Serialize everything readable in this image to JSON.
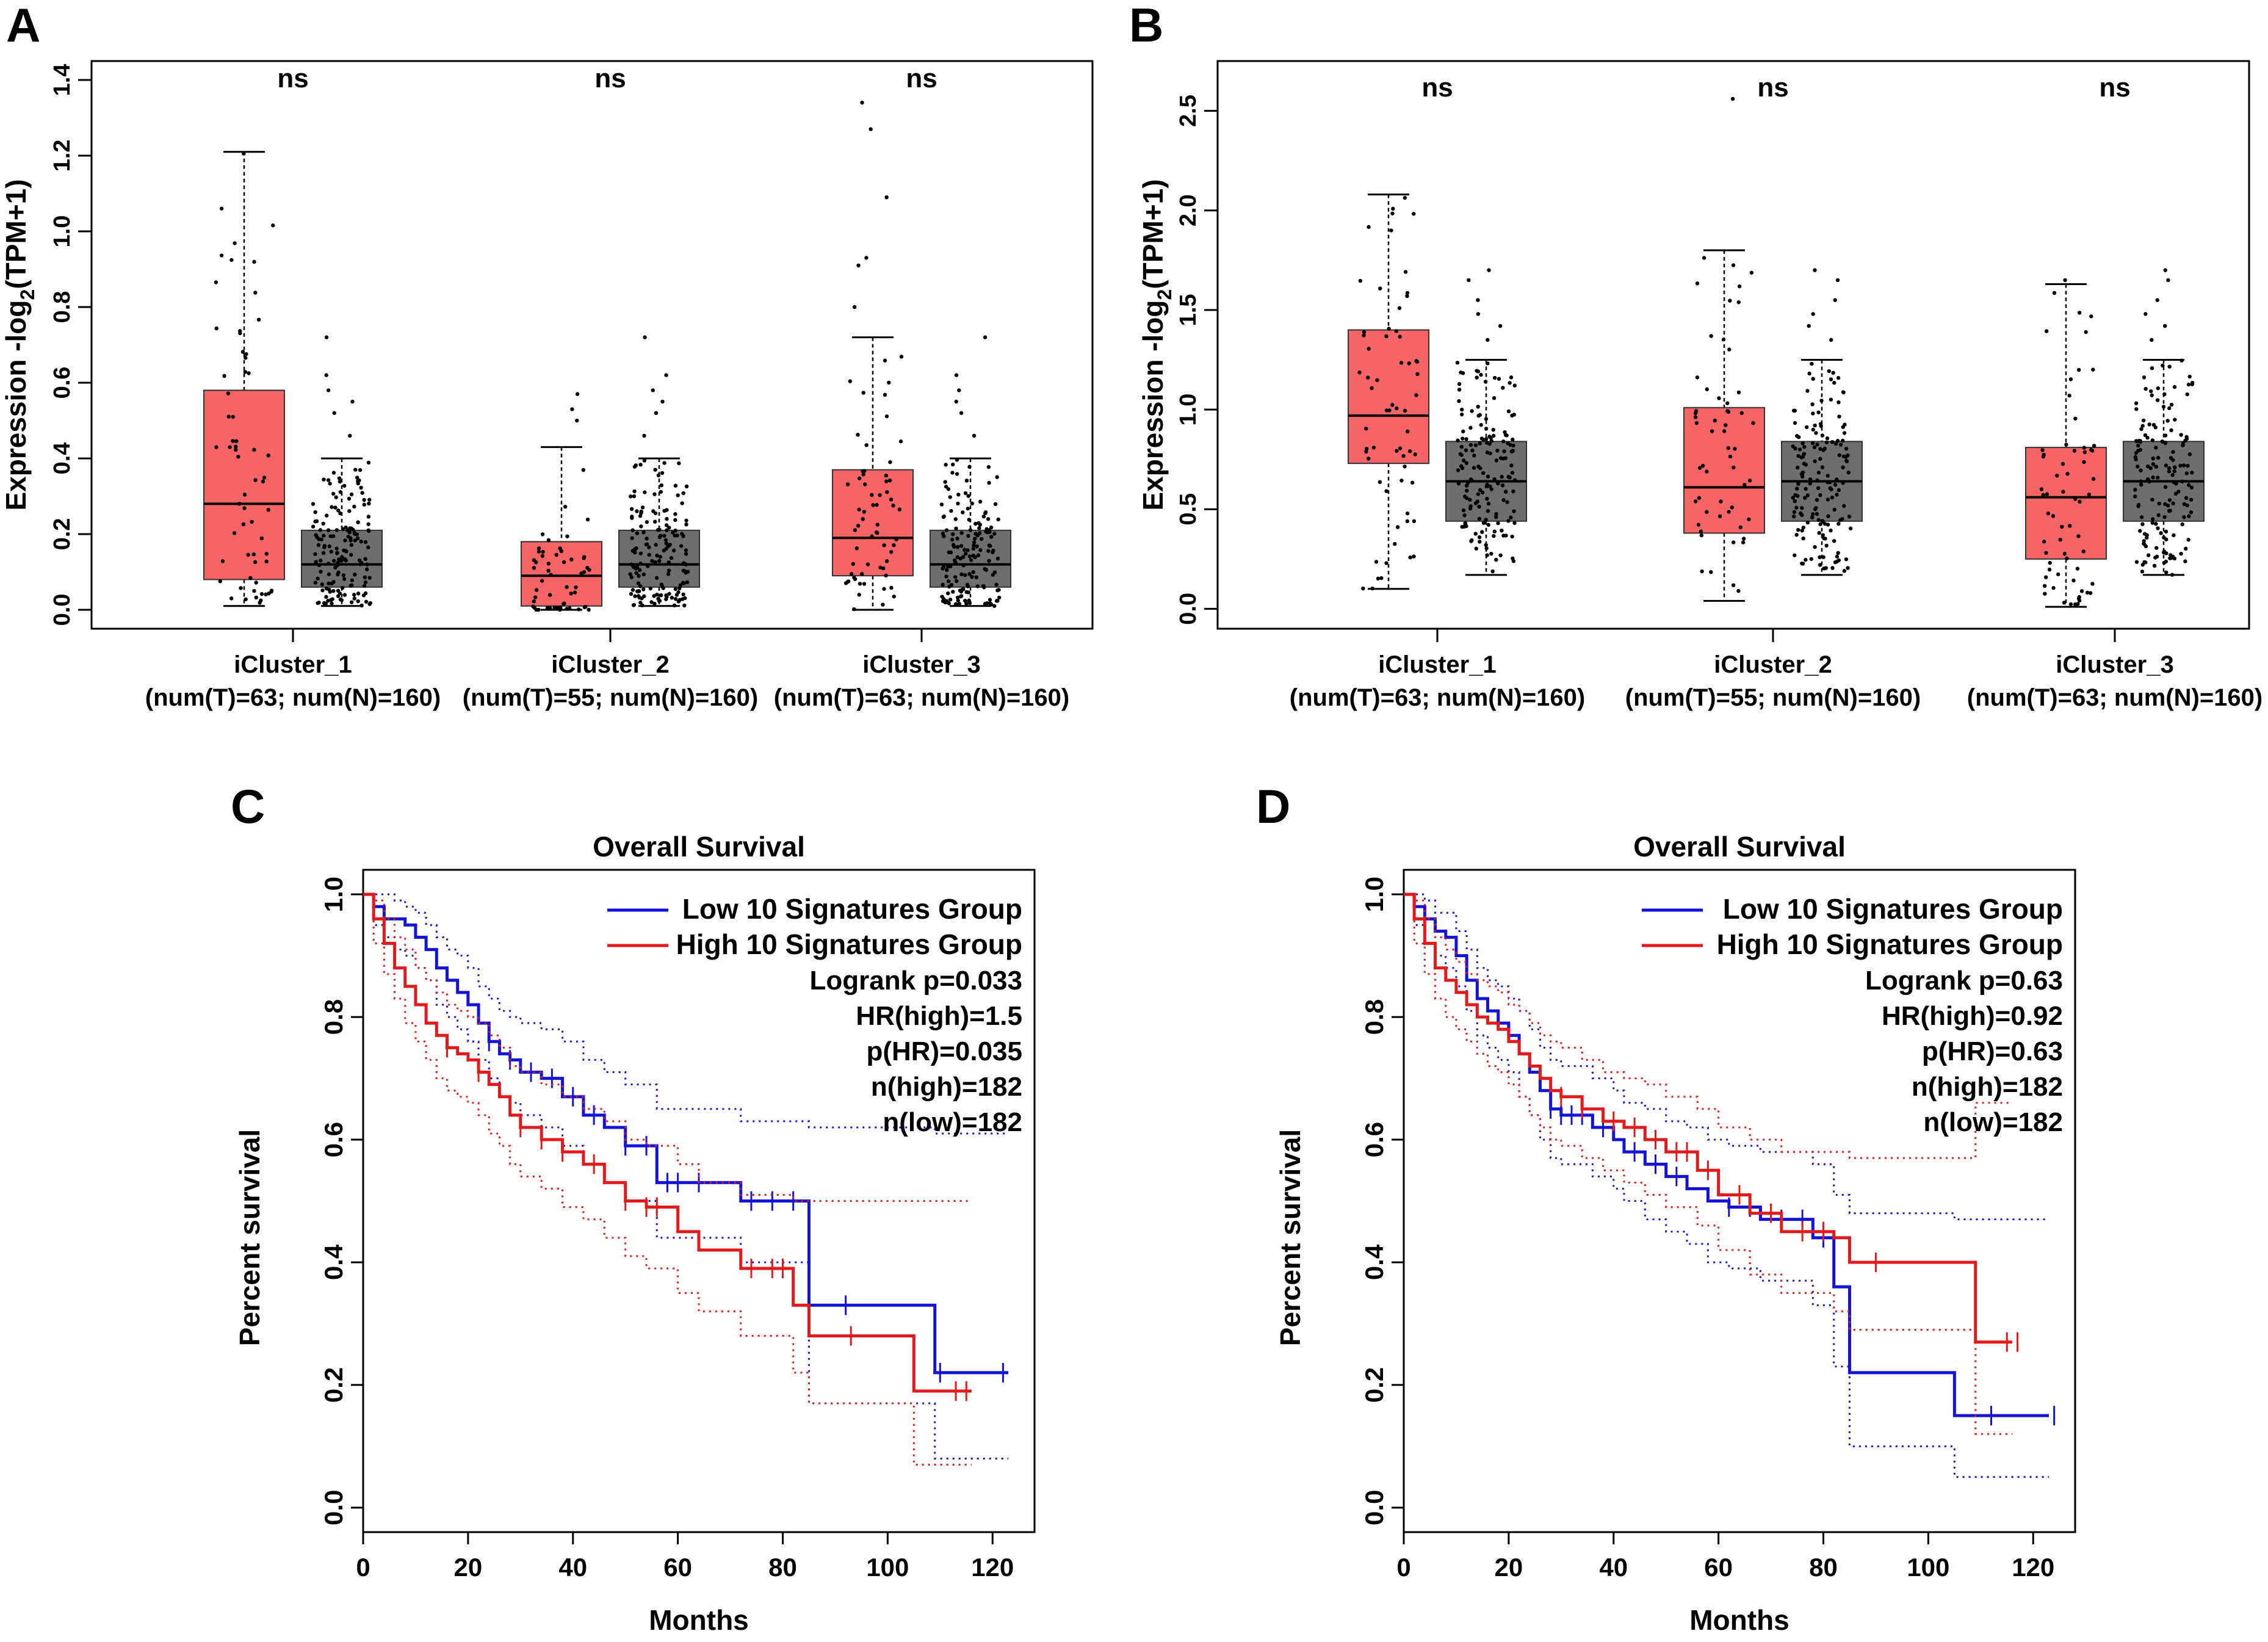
{
  "figure": {
    "panels": [
      "A",
      "B",
      "C",
      "D"
    ]
  },
  "colors": {
    "tumor_box": "#f56566",
    "normal_box": "#6e6e6e",
    "low_group": "#1414d8",
    "high_group": "#e31a1c",
    "axis": "#000000"
  },
  "chart_data": [
    {
      "panel": "A",
      "type": "box",
      "ylabel_main": "Expression -log",
      "ylabel_sub": "2",
      "ylabel_tail": "(TPM+1)",
      "ylim": [
        -0.05,
        1.45
      ],
      "yticks": [
        "0.0",
        "0.2",
        "0.4",
        "0.6",
        "0.8",
        "1.0",
        "1.2",
        "1.4"
      ],
      "ytick_values": [
        0,
        0.2,
        0.4,
        0.6,
        0.8,
        1.0,
        1.2,
        1.4
      ],
      "groups": [
        {
          "name": "iCluster_1",
          "counts": "(num(T)=63; num(N)=160)",
          "sig": "ns",
          "tumor": {
            "min": 0.01,
            "q1": 0.08,
            "median": 0.28,
            "q3": 0.58,
            "whisker": 1.21,
            "n": 63,
            "outliers": []
          },
          "normal": {
            "min": 0.01,
            "q1": 0.06,
            "median": 0.12,
            "q3": 0.21,
            "whisker": 0.4,
            "n": 160,
            "outliers": [
              0.72,
              0.62,
              0.58,
              0.55,
              0.52,
              0.46
            ]
          }
        },
        {
          "name": "iCluster_2",
          "counts": "(num(T)=55; num(N)=160)",
          "sig": "ns",
          "tumor": {
            "min": 0.0,
            "q1": 0.01,
            "median": 0.09,
            "q3": 0.18,
            "whisker": 0.43,
            "n": 55,
            "outliers": [
              0.57,
              0.53,
              0.5
            ]
          },
          "normal": {
            "min": 0.01,
            "q1": 0.06,
            "median": 0.12,
            "q3": 0.21,
            "whisker": 0.4,
            "n": 160,
            "outliers": [
              0.72,
              0.62,
              0.58,
              0.55,
              0.52,
              0.46
            ]
          }
        },
        {
          "name": "iCluster_3",
          "counts": "(num(T)=63; num(N)=160)",
          "sig": "ns",
          "tumor": {
            "min": 0.0,
            "q1": 0.09,
            "median": 0.19,
            "q3": 0.37,
            "whisker": 0.72,
            "n": 63,
            "outliers": [
              1.34,
              1.27,
              1.09,
              0.93,
              0.91,
              0.8
            ]
          },
          "normal": {
            "min": 0.01,
            "q1": 0.06,
            "median": 0.12,
            "q3": 0.21,
            "whisker": 0.4,
            "n": 160,
            "outliers": [
              0.72,
              0.62,
              0.58,
              0.55,
              0.52,
              0.46
            ]
          }
        }
      ]
    },
    {
      "panel": "B",
      "type": "box",
      "ylabel_main": "Expression -log",
      "ylabel_sub": "2",
      "ylabel_tail": "(TPM+1)",
      "ylim": [
        -0.1,
        2.75
      ],
      "yticks": [
        "0.0",
        "0.5",
        "1.0",
        "1.5",
        "2.0",
        "2.5"
      ],
      "ytick_values": [
        0,
        0.5,
        1.0,
        1.5,
        2.0,
        2.5
      ],
      "groups": [
        {
          "name": "iCluster_1",
          "counts": "(num(T)=63; num(N)=160)",
          "sig": "ns",
          "tumor": {
            "min": 0.1,
            "q1": 0.73,
            "median": 0.97,
            "q3": 1.4,
            "whisker": 2.08,
            "n": 63,
            "outliers": []
          },
          "normal": {
            "min": 0.17,
            "q1": 0.44,
            "median": 0.64,
            "q3": 0.84,
            "whisker": 1.25,
            "n": 160,
            "outliers": [
              1.7,
              1.65,
              1.55,
              1.48,
              1.42,
              1.35
            ]
          }
        },
        {
          "name": "iCluster_2",
          "counts": "(num(T)=55; num(N)=160)",
          "sig": "ns",
          "tumor": {
            "min": 0.04,
            "q1": 0.38,
            "median": 0.61,
            "q3": 1.01,
            "whisker": 1.8,
            "n": 55,
            "outliers": [
              2.56
            ]
          },
          "normal": {
            "min": 0.17,
            "q1": 0.44,
            "median": 0.64,
            "q3": 0.84,
            "whisker": 1.25,
            "n": 160,
            "outliers": [
              1.7,
              1.65,
              1.55,
              1.48,
              1.42,
              1.35
            ]
          }
        },
        {
          "name": "iCluster_3",
          "counts": "(num(T)=63; num(N)=160)",
          "sig": "ns",
          "tumor": {
            "min": 0.01,
            "q1": 0.25,
            "median": 0.56,
            "q3": 0.81,
            "whisker": 1.63,
            "n": 63,
            "outliers": [
              1.65
            ]
          },
          "normal": {
            "min": 0.17,
            "q1": 0.44,
            "median": 0.64,
            "q3": 0.84,
            "whisker": 1.25,
            "n": 160,
            "outliers": [
              1.7,
              1.65,
              1.55,
              1.48,
              1.42,
              1.35
            ]
          }
        }
      ]
    },
    {
      "panel": "C",
      "type": "line",
      "title": "Overall Survival",
      "xlabel": "Months",
      "ylabel": "Percent survival",
      "xlim": [
        0,
        128
      ],
      "ylim": [
        -0.04,
        1.04
      ],
      "xticks": [
        "0",
        "20",
        "40",
        "60",
        "80",
        "100",
        "120"
      ],
      "xtick_values": [
        0,
        20,
        40,
        60,
        80,
        100,
        120
      ],
      "yticks": [
        "0.0",
        "0.2",
        "0.4",
        "0.6",
        "0.8",
        "1.0"
      ],
      "ytick_values": [
        0,
        0.2,
        0.4,
        0.6,
        0.8,
        1.0
      ],
      "legend": {
        "low_label": "Low 10 Signatures Group",
        "high_label": "High 10 Signatures Group",
        "stats": [
          "Logrank p=0.033",
          "HR(high)=1.5",
          "p(HR)=0.035",
          "n(high)=182",
          "n(low)=182"
        ]
      },
      "series": [
        {
          "name": "Low 10 Signatures Group",
          "color_key": "low_group",
          "x": [
            0,
            2,
            4,
            6,
            8,
            10,
            12,
            14,
            16,
            18,
            20,
            22,
            24,
            26,
            28,
            30,
            34,
            38,
            42,
            46,
            50,
            56,
            62,
            72,
            85,
            109,
            123
          ],
          "y": [
            1.0,
            0.98,
            0.96,
            0.96,
            0.95,
            0.93,
            0.91,
            0.88,
            0.86,
            0.84,
            0.82,
            0.79,
            0.76,
            0.74,
            0.73,
            0.71,
            0.7,
            0.67,
            0.64,
            0.62,
            0.59,
            0.53,
            0.53,
            0.5,
            0.33,
            0.22,
            0.22
          ],
          "upper": [
            1.0,
            1.0,
            1.0,
            0.99,
            0.98,
            0.97,
            0.95,
            0.93,
            0.91,
            0.9,
            0.88,
            0.85,
            0.83,
            0.81,
            0.8,
            0.79,
            0.78,
            0.76,
            0.73,
            0.71,
            0.69,
            0.65,
            0.65,
            0.63,
            0.62,
            0.61,
            0.61
          ],
          "lower": [
            1.0,
            0.95,
            0.93,
            0.91,
            0.9,
            0.88,
            0.86,
            0.82,
            0.8,
            0.78,
            0.76,
            0.73,
            0.7,
            0.67,
            0.66,
            0.64,
            0.62,
            0.59,
            0.56,
            0.53,
            0.5,
            0.44,
            0.44,
            0.4,
            0.17,
            0.08,
            0.08
          ],
          "censor": [
            24,
            28,
            32,
            36,
            40,
            44,
            50,
            54,
            58,
            60,
            64,
            74,
            78,
            82,
            92,
            110,
            122
          ]
        },
        {
          "name": "High 10 Signatures Group",
          "color_key": "high_group",
          "x": [
            0,
            2,
            4,
            6,
            8,
            10,
            12,
            14,
            16,
            18,
            20,
            22,
            24,
            26,
            28,
            30,
            34,
            38,
            42,
            46,
            50,
            54,
            60,
            64,
            72,
            82,
            85,
            105,
            116
          ],
          "y": [
            1.0,
            0.96,
            0.92,
            0.88,
            0.85,
            0.82,
            0.79,
            0.77,
            0.75,
            0.74,
            0.73,
            0.71,
            0.69,
            0.67,
            0.64,
            0.62,
            0.6,
            0.58,
            0.56,
            0.53,
            0.5,
            0.49,
            0.45,
            0.42,
            0.39,
            0.33,
            0.28,
            0.19,
            0.19
          ],
          "upper": [
            1.0,
            0.99,
            0.96,
            0.93,
            0.91,
            0.88,
            0.86,
            0.84,
            0.82,
            0.81,
            0.8,
            0.79,
            0.77,
            0.75,
            0.72,
            0.71,
            0.69,
            0.67,
            0.65,
            0.63,
            0.6,
            0.59,
            0.56,
            0.53,
            0.51,
            0.5,
            0.5,
            0.5,
            0.5
          ],
          "lower": [
            1.0,
            0.92,
            0.87,
            0.83,
            0.79,
            0.76,
            0.73,
            0.7,
            0.68,
            0.67,
            0.66,
            0.64,
            0.61,
            0.59,
            0.56,
            0.54,
            0.52,
            0.49,
            0.47,
            0.44,
            0.41,
            0.39,
            0.35,
            0.32,
            0.28,
            0.22,
            0.17,
            0.07,
            0.07
          ],
          "censor": [
            16,
            22,
            30,
            34,
            38,
            44,
            50,
            54,
            56,
            74,
            78,
            80,
            93,
            113,
            115
          ]
        }
      ]
    },
    {
      "panel": "D",
      "type": "line",
      "title": "Overall Survival",
      "xlabel": "Months",
      "ylabel": "Percent survival",
      "xlim": [
        0,
        128
      ],
      "ylim": [
        -0.04,
        1.04
      ],
      "xticks": [
        "0",
        "20",
        "40",
        "60",
        "80",
        "100",
        "120"
      ],
      "xtick_values": [
        0,
        20,
        40,
        60,
        80,
        100,
        120
      ],
      "yticks": [
        "0.0",
        "0.2",
        "0.4",
        "0.6",
        "0.8",
        "1.0"
      ],
      "ytick_values": [
        0,
        0.2,
        0.4,
        0.6,
        0.8,
        1.0
      ],
      "legend": {
        "low_label": "Low 10 Signatures Group",
        "high_label": "High 10 Signatures Group",
        "stats": [
          "Logrank p=0.63",
          "HR(high)=0.92",
          "p(HR)=0.63",
          "n(high)=182",
          "n(low)=182"
        ]
      },
      "series": [
        {
          "name": "Low 10 Signatures Group",
          "color_key": "low_group",
          "x": [
            0,
            2,
            4,
            6,
            8,
            10,
            12,
            14,
            16,
            18,
            20,
            22,
            24,
            26,
            28,
            30,
            36,
            40,
            42,
            46,
            50,
            54,
            58,
            62,
            68,
            78,
            82,
            85,
            105,
            123
          ],
          "y": [
            1.0,
            0.98,
            0.96,
            0.94,
            0.93,
            0.9,
            0.86,
            0.83,
            0.81,
            0.79,
            0.77,
            0.74,
            0.71,
            0.68,
            0.65,
            0.64,
            0.62,
            0.6,
            0.58,
            0.56,
            0.54,
            0.52,
            0.5,
            0.49,
            0.47,
            0.44,
            0.36,
            0.22,
            0.15,
            0.15
          ],
          "upper": [
            1.0,
            1.0,
            0.99,
            0.97,
            0.97,
            0.94,
            0.91,
            0.88,
            0.86,
            0.85,
            0.83,
            0.81,
            0.78,
            0.75,
            0.73,
            0.72,
            0.7,
            0.68,
            0.66,
            0.65,
            0.63,
            0.62,
            0.6,
            0.59,
            0.58,
            0.56,
            0.51,
            0.48,
            0.47,
            0.47
          ],
          "lower": [
            1.0,
            0.95,
            0.92,
            0.9,
            0.88,
            0.85,
            0.81,
            0.77,
            0.75,
            0.73,
            0.71,
            0.67,
            0.64,
            0.6,
            0.57,
            0.56,
            0.54,
            0.52,
            0.5,
            0.47,
            0.45,
            0.43,
            0.4,
            0.39,
            0.37,
            0.33,
            0.23,
            0.1,
            0.05,
            0.05
          ],
          "censor": [
            28,
            30,
            32,
            34,
            38,
            44,
            48,
            52,
            62,
            66,
            72,
            76,
            80,
            112,
            124
          ]
        },
        {
          "name": "High 10 Signatures Group",
          "color_key": "high_group",
          "x": [
            0,
            2,
            4,
            6,
            8,
            10,
            12,
            14,
            16,
            18,
            20,
            22,
            24,
            26,
            28,
            30,
            34,
            38,
            42,
            46,
            50,
            56,
            60,
            66,
            72,
            82,
            85,
            109,
            116
          ],
          "y": [
            1.0,
            0.96,
            0.92,
            0.88,
            0.86,
            0.84,
            0.82,
            0.8,
            0.79,
            0.78,
            0.76,
            0.74,
            0.72,
            0.7,
            0.68,
            0.67,
            0.65,
            0.63,
            0.62,
            0.6,
            0.58,
            0.55,
            0.51,
            0.48,
            0.45,
            0.44,
            0.4,
            0.27,
            0.27
          ],
          "upper": [
            1.0,
            0.99,
            0.96,
            0.93,
            0.91,
            0.89,
            0.87,
            0.86,
            0.85,
            0.84,
            0.82,
            0.81,
            0.79,
            0.77,
            0.76,
            0.75,
            0.73,
            0.71,
            0.7,
            0.69,
            0.67,
            0.65,
            0.62,
            0.6,
            0.58,
            0.58,
            0.57,
            0.66,
            0.66
          ],
          "lower": [
            1.0,
            0.92,
            0.87,
            0.83,
            0.8,
            0.78,
            0.76,
            0.74,
            0.72,
            0.71,
            0.69,
            0.67,
            0.64,
            0.62,
            0.6,
            0.59,
            0.57,
            0.55,
            0.53,
            0.51,
            0.49,
            0.46,
            0.42,
            0.38,
            0.35,
            0.32,
            0.29,
            0.12,
            0.12
          ],
          "censor": [
            30,
            34,
            40,
            44,
            48,
            52,
            54,
            58,
            64,
            70,
            76,
            80,
            90,
            115,
            117
          ]
        }
      ]
    }
  ]
}
